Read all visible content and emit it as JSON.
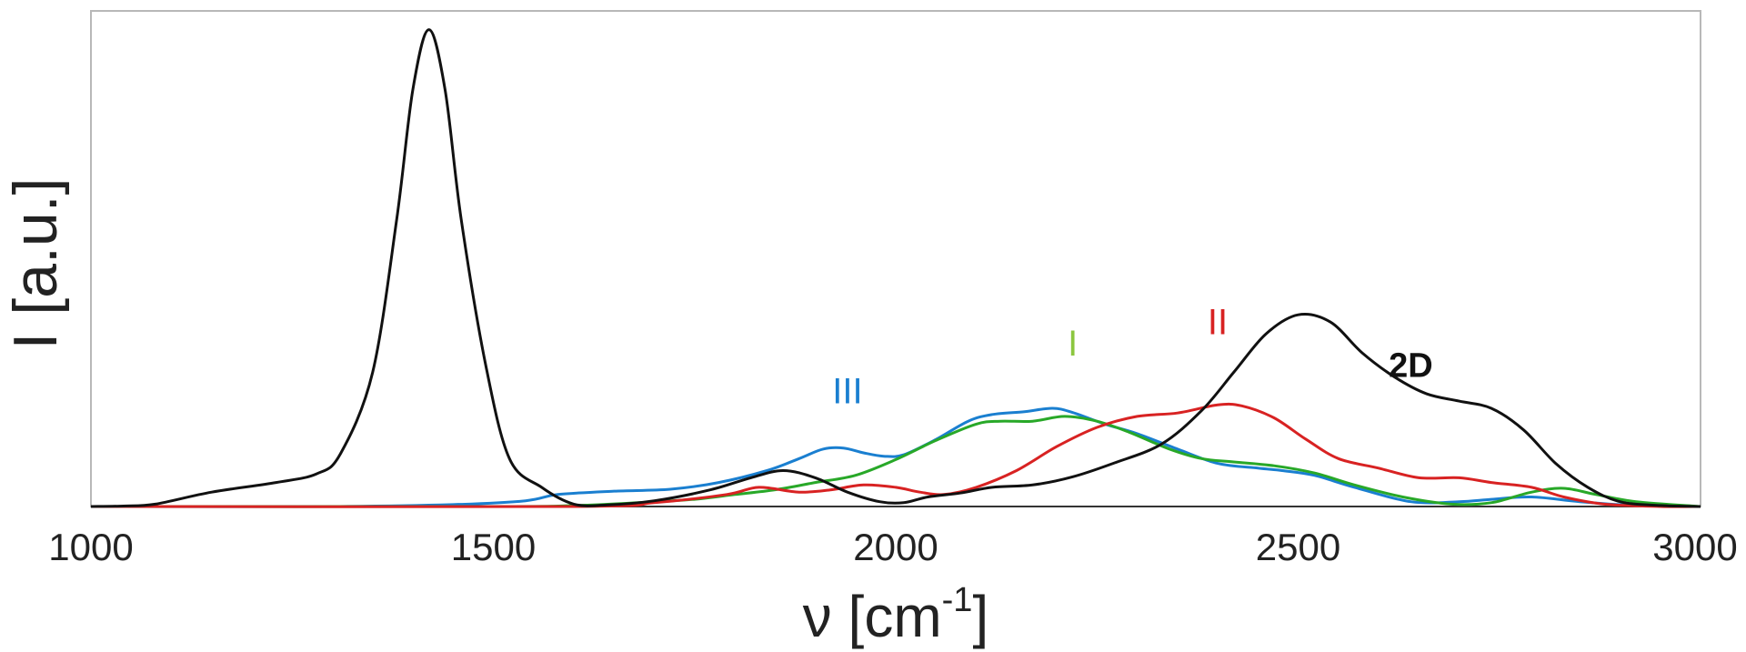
{
  "chart_data": {
    "type": "line",
    "xlabel": "ν [cm",
    "xlabel_sup": "-1",
    "xlabel_end": "]",
    "ylabel": "I [a.u.]",
    "xlim": [
      1000,
      3000
    ],
    "ylim": [
      0,
      1
    ],
    "grid": false,
    "x_ticks": [
      "1000",
      "1500",
      "2000",
      "2500",
      "3000"
    ],
    "series": [
      {
        "name": "III",
        "color": "#1a7fd0",
        "points": [
          [
            1000,
            0
          ],
          [
            1300,
            0
          ],
          [
            1450,
            0.004
          ],
          [
            1540,
            0.012
          ],
          [
            1580,
            0.025
          ],
          [
            1650,
            0.032
          ],
          [
            1720,
            0.036
          ],
          [
            1780,
            0.05
          ],
          [
            1840,
            0.075
          ],
          [
            1880,
            0.1
          ],
          [
            1910,
            0.12
          ],
          [
            1935,
            0.122
          ],
          [
            1960,
            0.112
          ],
          [
            1985,
            0.105
          ],
          [
            2010,
            0.108
          ],
          [
            2050,
            0.14
          ],
          [
            2090,
            0.178
          ],
          [
            2120,
            0.192
          ],
          [
            2160,
            0.198
          ],
          [
            2195,
            0.205
          ],
          [
            2220,
            0.196
          ],
          [
            2260,
            0.172
          ],
          [
            2300,
            0.152
          ],
          [
            2350,
            0.12
          ],
          [
            2400,
            0.09
          ],
          [
            2450,
            0.08
          ],
          [
            2480,
            0.075
          ],
          [
            2520,
            0.065
          ],
          [
            2570,
            0.04
          ],
          [
            2640,
            0.01
          ],
          [
            2700,
            0.01
          ],
          [
            2740,
            0.015
          ],
          [
            2790,
            0.02
          ],
          [
            2850,
            0.01
          ],
          [
            2920,
            0.002
          ],
          [
            3000,
            0
          ]
        ]
      },
      {
        "name": "I",
        "color": "#28a828",
        "points": [
          [
            1000,
            0
          ],
          [
            1500,
            0
          ],
          [
            1600,
            0.002
          ],
          [
            1680,
            0.008
          ],
          [
            1750,
            0.015
          ],
          [
            1800,
            0.025
          ],
          [
            1850,
            0.035
          ],
          [
            1900,
            0.05
          ],
          [
            1950,
            0.065
          ],
          [
            2000,
            0.098
          ],
          [
            2050,
            0.138
          ],
          [
            2100,
            0.172
          ],
          [
            2130,
            0.178
          ],
          [
            2170,
            0.178
          ],
          [
            2210,
            0.188
          ],
          [
            2250,
            0.178
          ],
          [
            2290,
            0.155
          ],
          [
            2340,
            0.12
          ],
          [
            2380,
            0.1
          ],
          [
            2420,
            0.093
          ],
          [
            2470,
            0.085
          ],
          [
            2520,
            0.07
          ],
          [
            2570,
            0.045
          ],
          [
            2630,
            0.02
          ],
          [
            2690,
            0.005
          ],
          [
            2740,
            0.008
          ],
          [
            2790,
            0.03
          ],
          [
            2830,
            0.038
          ],
          [
            2870,
            0.025
          ],
          [
            2920,
            0.01
          ],
          [
            3000,
            0
          ]
        ]
      },
      {
        "name": "II",
        "color": "#d82222",
        "points": [
          [
            1000,
            0
          ],
          [
            1600,
            0
          ],
          [
            1700,
            0.008
          ],
          [
            1790,
            0.025
          ],
          [
            1830,
            0.04
          ],
          [
            1880,
            0.03
          ],
          [
            1920,
            0.035
          ],
          [
            1960,
            0.045
          ],
          [
            2000,
            0.04
          ],
          [
            2030,
            0.03
          ],
          [
            2060,
            0.025
          ],
          [
            2100,
            0.04
          ],
          [
            2150,
            0.075
          ],
          [
            2200,
            0.125
          ],
          [
            2250,
            0.165
          ],
          [
            2300,
            0.188
          ],
          [
            2350,
            0.195
          ],
          [
            2400,
            0.212
          ],
          [
            2430,
            0.21
          ],
          [
            2470,
            0.185
          ],
          [
            2510,
            0.14
          ],
          [
            2550,
            0.1
          ],
          [
            2600,
            0.08
          ],
          [
            2650,
            0.06
          ],
          [
            2700,
            0.06
          ],
          [
            2740,
            0.05
          ],
          [
            2790,
            0.04
          ],
          [
            2830,
            0.02
          ],
          [
            2880,
            0.005
          ],
          [
            2950,
            0
          ],
          [
            3000,
            0
          ]
        ]
      },
      {
        "name": "2D",
        "color": "#111111",
        "points": [
          [
            1000,
            0
          ],
          [
            1040,
            0.001
          ],
          [
            1080,
            0.005
          ],
          [
            1150,
            0.03
          ],
          [
            1230,
            0.05
          ],
          [
            1280,
            0.068
          ],
          [
            1310,
            0.11
          ],
          [
            1350,
            0.28
          ],
          [
            1380,
            0.6
          ],
          [
            1400,
            0.87
          ],
          [
            1420,
            0.995
          ],
          [
            1440,
            0.87
          ],
          [
            1460,
            0.6
          ],
          [
            1490,
            0.3
          ],
          [
            1520,
            0.1
          ],
          [
            1560,
            0.04
          ],
          [
            1600,
            0.005
          ],
          [
            1640,
            0.003
          ],
          [
            1700,
            0.012
          ],
          [
            1770,
            0.035
          ],
          [
            1820,
            0.06
          ],
          [
            1860,
            0.075
          ],
          [
            1900,
            0.06
          ],
          [
            1940,
            0.03
          ],
          [
            1980,
            0.01
          ],
          [
            2010,
            0.008
          ],
          [
            2040,
            0.02
          ],
          [
            2080,
            0.028
          ],
          [
            2120,
            0.04
          ],
          [
            2170,
            0.045
          ],
          [
            2220,
            0.062
          ],
          [
            2270,
            0.09
          ],
          [
            2330,
            0.13
          ],
          [
            2380,
            0.2
          ],
          [
            2420,
            0.28
          ],
          [
            2460,
            0.36
          ],
          [
            2500,
            0.4
          ],
          [
            2540,
            0.385
          ],
          [
            2580,
            0.32
          ],
          [
            2620,
            0.27
          ],
          [
            2660,
            0.235
          ],
          [
            2700,
            0.22
          ],
          [
            2740,
            0.205
          ],
          [
            2780,
            0.16
          ],
          [
            2820,
            0.09
          ],
          [
            2860,
            0.04
          ],
          [
            2900,
            0.01
          ],
          [
            2950,
            0.002
          ],
          [
            3000,
            0
          ]
        ]
      }
    ],
    "annotations": [
      {
        "text": "III",
        "color": "#1a7fd0",
        "x": 1940,
        "y": 0.215,
        "bold": false
      },
      {
        "text": "I",
        "color": "#8cc63f",
        "x": 2220,
        "y": 0.315,
        "bold": false
      },
      {
        "text": "II",
        "color": "#d82222",
        "x": 2400,
        "y": 0.36,
        "bold": false
      },
      {
        "text": "2D",
        "color": "#111111",
        "x": 2640,
        "y": 0.27,
        "bold": true
      }
    ]
  }
}
